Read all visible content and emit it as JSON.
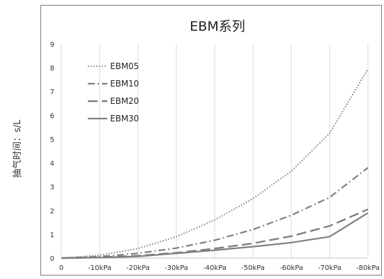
{
  "chart_data": {
    "type": "line",
    "title": "EBM系列",
    "ylabel": "抽气时间：s/L",
    "xlabel": "",
    "categories": [
      "0",
      "-10kPa",
      "-20kPa",
      "-30kPa",
      "-40kPa",
      "-50kPa",
      "-60kPa",
      "-70kPa",
      "-80kPa"
    ],
    "ylim": [
      0,
      9
    ],
    "yticks": [
      "0",
      "1",
      "2",
      "3",
      "4",
      "5",
      "6",
      "7",
      "8",
      "9"
    ],
    "grid": {
      "vertical": true,
      "horizontal": false
    },
    "legend": "top-left",
    "series": [
      {
        "name": "EBM05",
        "style": "dotted",
        "color": "#7f7f7f",
        "values": [
          0,
          0.12,
          0.4,
          0.9,
          1.6,
          2.5,
          3.65,
          5.25,
          7.95
        ]
      },
      {
        "name": "EBM10",
        "style": "dash-dot",
        "color": "#7f7f7f",
        "values": [
          0,
          0.06,
          0.2,
          0.42,
          0.75,
          1.2,
          1.8,
          2.55,
          3.8
        ]
      },
      {
        "name": "EBM20",
        "style": "long-dash",
        "color": "#7f7f7f",
        "values": [
          0,
          0.03,
          0.1,
          0.22,
          0.4,
          0.62,
          0.92,
          1.35,
          2.05
        ]
      },
      {
        "name": "EBM30",
        "style": "solid",
        "color": "#7f7f7f",
        "values": [
          0,
          0.02,
          0.07,
          0.2,
          0.33,
          0.48,
          0.65,
          0.9,
          1.9
        ]
      }
    ]
  }
}
